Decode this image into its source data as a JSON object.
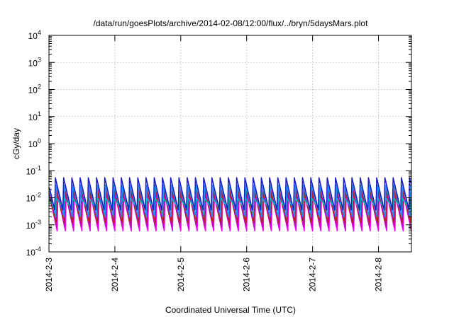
{
  "chart_data": {
    "type": "line",
    "title": "/data/run/goesPlots/archive/2014-02-08/12:00/flux/../bryn/5daysMars.plot",
    "xlabel": "Coordinated Universal Time (UTC)",
    "ylabel": "cGy/day",
    "y_scale": "log",
    "ylim_exponents": [
      -4,
      4
    ],
    "y_tick_base": "10",
    "y_tick_exponents": [
      "-4",
      "-3",
      "-2",
      "-1",
      "0",
      "1",
      "2",
      "3",
      "4"
    ],
    "x_tick_labels": [
      "2014-2-3",
      "2014-2-4",
      "2014-2-5",
      "2014-2-6",
      "2014-2-7",
      "2014-2-8"
    ],
    "x_range_days": [
      0,
      5.5
    ],
    "grid": true,
    "legend": "none",
    "period_days": 0.125,
    "series": [
      {
        "color": "#ff00ff",
        "peak": 0.012,
        "trough": 0.0006
      },
      {
        "color": "#cc00cc",
        "peak": 0.015,
        "trough": 0.0008
      },
      {
        "color": "#b22222",
        "peak": 0.02,
        "trough": 0.0012
      },
      {
        "color": "#1e90ff",
        "peak": 0.03,
        "trough": 0.002
      },
      {
        "color": "#00bfbf",
        "peak": 0.01,
        "trough": 0.004
      },
      {
        "color": "#2020c0",
        "peak": 0.055,
        "trough": 0.0035
      }
    ]
  }
}
